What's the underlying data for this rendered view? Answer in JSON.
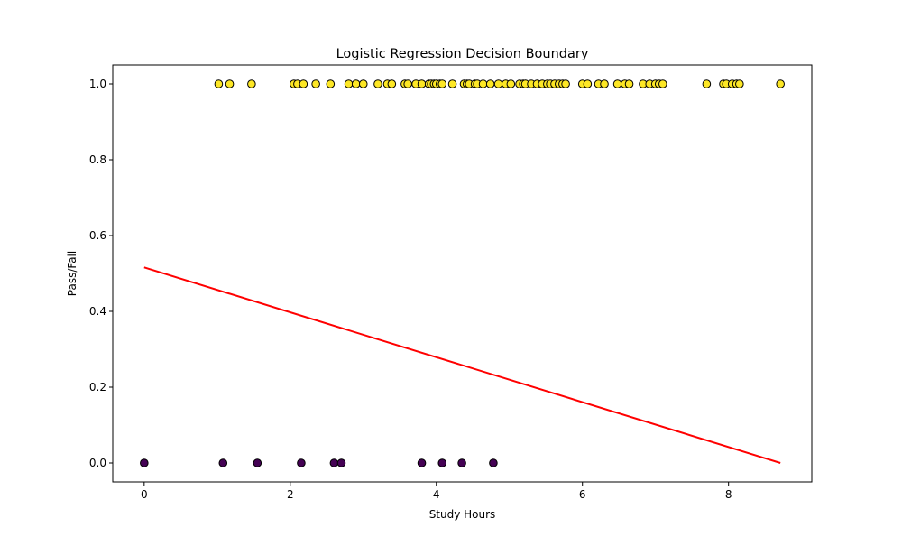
{
  "chart_data": {
    "type": "scatter",
    "title": "Logistic Regression Decision Boundary",
    "xlabel": "Study Hours",
    "ylabel": "Pass/Fail",
    "xlim": [
      -0.43,
      9.14
    ],
    "ylim": [
      -0.05,
      1.05
    ],
    "xticks": [
      0,
      2,
      4,
      6,
      8
    ],
    "xtick_labels": [
      "0",
      "2",
      "4",
      "6",
      "8"
    ],
    "yticks": [
      0.0,
      0.2,
      0.4,
      0.6,
      0.8,
      1.0
    ],
    "ytick_labels": [
      "0.0",
      "0.2",
      "0.4",
      "0.6",
      "0.8",
      "1.0"
    ],
    "grid": false,
    "series": [
      {
        "marker": "circle",
        "color": "#440154",
        "x": [
          0.0,
          1.08,
          1.55,
          2.15,
          2.6,
          2.7,
          3.8,
          4.08,
          4.35,
          4.78
        ],
        "y": [
          0,
          0,
          0,
          0,
          0,
          0,
          0,
          0,
          0,
          0
        ]
      },
      {
        "marker": "circle",
        "color": "#fde725",
        "x": [
          1.02,
          1.17,
          1.47,
          2.05,
          2.1,
          2.18,
          2.35,
          2.55,
          2.8,
          2.9,
          3.0,
          3.2,
          3.33,
          3.39,
          3.57,
          3.61,
          3.72,
          3.8,
          3.9,
          3.93,
          3.97,
          4.0,
          4.05,
          4.08,
          4.22,
          4.38,
          4.42,
          4.45,
          4.53,
          4.56,
          4.64,
          4.74,
          4.85,
          4.95,
          5.02,
          5.14,
          5.19,
          5.22,
          5.3,
          5.38,
          5.45,
          5.52,
          5.56,
          5.62,
          5.68,
          5.73,
          5.77,
          6.0,
          6.07,
          6.22,
          6.3,
          6.48,
          6.58,
          6.64,
          6.83,
          6.92,
          7.0,
          7.05,
          7.1,
          7.7,
          7.93,
          7.97,
          8.05,
          8.11,
          8.15,
          8.71
        ],
        "y": [
          1,
          1,
          1,
          1,
          1,
          1,
          1,
          1,
          1,
          1,
          1,
          1,
          1,
          1,
          1,
          1,
          1,
          1,
          1,
          1,
          1,
          1,
          1,
          1,
          1,
          1,
          1,
          1,
          1,
          1,
          1,
          1,
          1,
          1,
          1,
          1,
          1,
          1,
          1,
          1,
          1,
          1,
          1,
          1,
          1,
          1,
          1,
          1,
          1,
          1,
          1,
          1,
          1,
          1,
          1,
          1,
          1,
          1,
          1,
          1,
          1,
          1,
          1,
          1,
          1,
          1
        ]
      },
      {
        "type": "line",
        "color": "#ff0000",
        "x": [
          0.0,
          8.71
        ],
        "y": [
          0.516,
          0.0
        ]
      }
    ]
  }
}
